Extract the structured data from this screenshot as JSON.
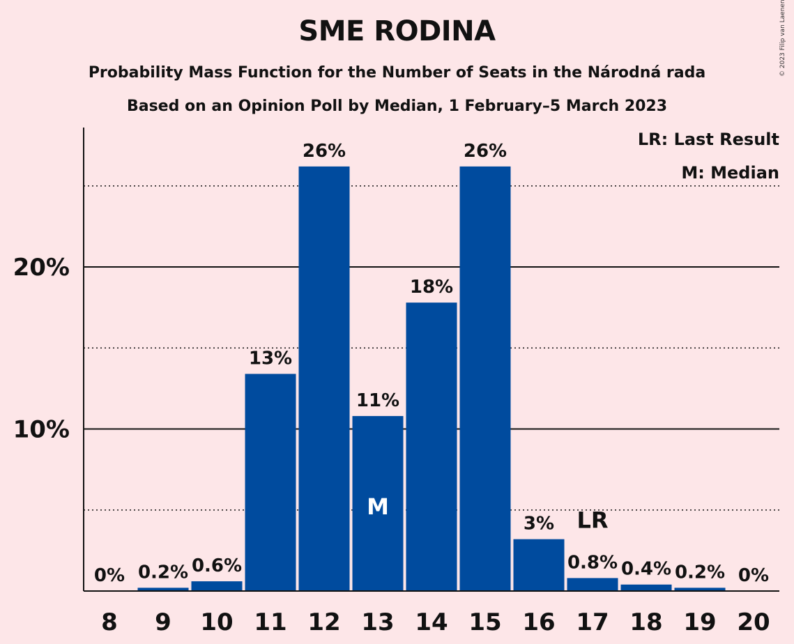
{
  "chart_data": {
    "type": "bar",
    "title": "SME RODINA",
    "subtitle": "Probability Mass Function for the Number of Seats in the Národná rada",
    "subtitle2": "Based on an Opinion Poll by Median, 1 February–5 March 2023",
    "categories": [
      "8",
      "9",
      "10",
      "11",
      "12",
      "13",
      "14",
      "15",
      "16",
      "17",
      "18",
      "19",
      "20"
    ],
    "values": [
      0,
      0.2,
      0.6,
      13.4,
      26.2,
      10.8,
      17.8,
      26.2,
      3.2,
      0.8,
      0.4,
      0.2,
      0
    ],
    "data_labels": [
      "0%",
      "0.2%",
      "0.6%",
      "13%",
      "26%",
      "11%",
      "18%",
      "26%",
      "3%",
      "0.8%",
      "0.4%",
      "0.2%",
      "0%"
    ],
    "y_ticks": [
      10,
      20
    ],
    "y_tick_labels": [
      "10%",
      "20%"
    ],
    "y_dotted_lines": [
      5,
      15,
      25
    ],
    "ylim": [
      0,
      28.6
    ],
    "median_category": "13",
    "median_marker": "M",
    "last_result_category": "17",
    "last_result_marker": "LR",
    "legend": [
      "LR: Last Result",
      "M: Median"
    ],
    "legend_position": "top-right",
    "bar_color": "#004b9e",
    "background_color": "#fde6e8"
  },
  "copyright": "© 2023 Filip van Laenen"
}
